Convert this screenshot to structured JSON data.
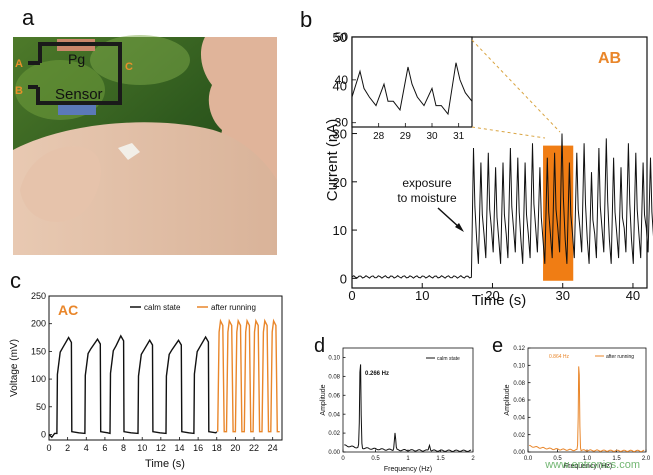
{
  "panel_labels": {
    "a": "a",
    "b": "b",
    "c": "c",
    "d": "d",
    "e": "e"
  },
  "photo": {
    "circuit_labels": {
      "pg": "Pg",
      "sensor": "Sensor",
      "node_a": "A",
      "node_b": "B",
      "node_c": "C"
    },
    "colors": {
      "node_labels": "#e8902a",
      "pg_block": "#c9866a",
      "sensor_block": "#5b79b8",
      "wire": "#1a1a1a"
    }
  },
  "watermark": "www.entronics.com",
  "colors": {
    "orange": "#e9862a",
    "black": "#111111",
    "highlight": "#f07d14"
  },
  "chart_data": [
    {
      "panel": "b",
      "type": "line",
      "tag": "AB",
      "xlabel": "Time (s)",
      "ylabel": "Current (nA)",
      "xlim": [
        0,
        42
      ],
      "ylim": [
        -2,
        50
      ],
      "xticks": [
        0,
        10,
        20,
        30,
        40
      ],
      "yticks": [
        0,
        10,
        20,
        30,
        40,
        50
      ],
      "annotation": [
        "exposure",
        "to moisture"
      ],
      "highlight_range": [
        27.2,
        31.5
      ],
      "series": [
        {
          "baseline": 0.3,
          "onset": 17.2,
          "period": 1.05,
          "low": 3,
          "peaks": [
            27,
            24,
            26,
            23,
            24,
            27,
            25,
            24,
            28,
            23,
            25,
            26,
            30,
            24,
            26,
            28,
            22,
            27,
            29,
            25,
            23,
            28,
            26,
            24,
            25,
            27,
            23,
            26
          ]
        }
      ],
      "inset": {
        "xlim": [
          27,
          31.5
        ],
        "ylim": [
          29,
          50
        ],
        "xticks": [
          28,
          29,
          30,
          31
        ],
        "yticks": [
          30,
          40,
          50
        ],
        "period": 0.9,
        "start": 27.3,
        "peaks": [
          42,
          39,
          43,
          38,
          44,
          41,
          46,
          40,
          43,
          39
        ],
        "lows": [
          34,
          33,
          34,
          32,
          35,
          33,
          34,
          32,
          35,
          33
        ]
      }
    },
    {
      "panel": "c",
      "type": "line",
      "tag": "AC",
      "xlabel": "Time (s)",
      "ylabel": "Voltage (mV)",
      "xlim": [
        0,
        25
      ],
      "ylim": [
        -10,
        250
      ],
      "xticks": [
        0,
        2,
        4,
        6,
        8,
        10,
        12,
        14,
        16,
        18,
        20,
        22,
        24
      ],
      "yticks": [
        0,
        50,
        100,
        150,
        200,
        250
      ],
      "legend": [
        "calm state",
        "after running"
      ],
      "series": [
        {
          "name": "calm state",
          "pulses": [
            [
              0.9,
              2.4,
              175
            ],
            [
              3.9,
              5.5,
              172
            ],
            [
              6.6,
              8.0,
              178
            ],
            [
              9.6,
              11.1,
              170
            ],
            [
              12.6,
              14.2,
              170
            ],
            [
              15.6,
              17.1,
              176
            ]
          ]
        },
        {
          "name": "after running",
          "start": 18.1,
          "end": 24.6,
          "period": 0.95,
          "high": 205,
          "low": 5
        }
      ]
    },
    {
      "panel": "d",
      "type": "line",
      "xlabel": "Frequency (Hz)",
      "ylabel": "Amplitude",
      "xlim": [
        0,
        2
      ],
      "ylim": [
        0,
        0.11
      ],
      "xticks": [
        "0",
        "0.5",
        "1",
        "1.5",
        "2"
      ],
      "yticks": [
        "0.00",
        "0.02",
        "0.04",
        "0.06",
        "0.08",
        "0.10"
      ],
      "legend": [
        "calm state"
      ],
      "peak_label": "0.266 Hz",
      "peaks": [
        [
          0.266,
          0.095
        ],
        [
          0.8,
          0.018
        ],
        [
          1.33,
          0.006
        ]
      ]
    },
    {
      "panel": "e",
      "type": "line",
      "xlabel": "Frequency (Hz)",
      "ylabel": "Amplitude",
      "xlim": [
        0,
        2
      ],
      "ylim": [
        0,
        0.12
      ],
      "xticks": [
        "0.0",
        "0.5",
        "1.0",
        "1.5",
        "2.0"
      ],
      "yticks": [
        "0.00",
        "0.02",
        "0.04",
        "0.06",
        "0.08",
        "0.10",
        "0.12"
      ],
      "legend": [
        "after running"
      ],
      "peak_label": "0.864 Hz",
      "peaks": [
        [
          0.864,
          0.105
        ]
      ]
    }
  ]
}
